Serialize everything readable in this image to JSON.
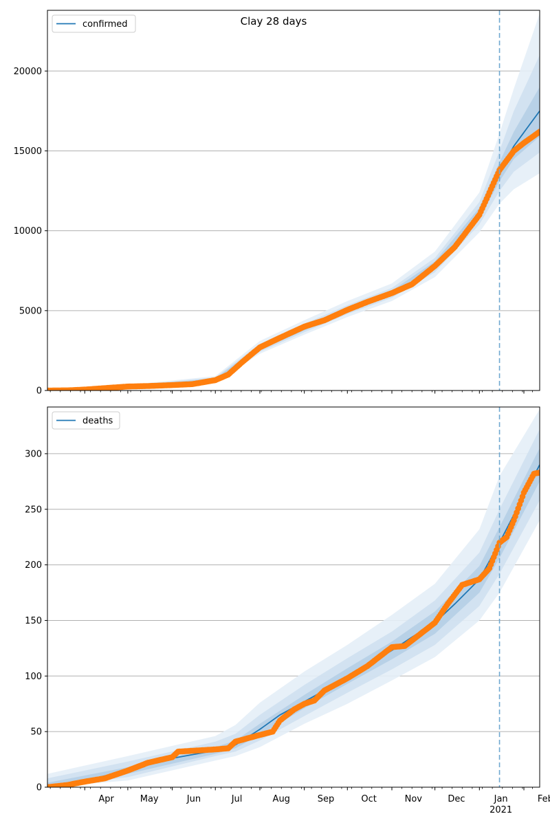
{
  "figure": {
    "title": "Clay 28 days"
  },
  "chart_data": [
    {
      "type": "line",
      "name": "confirmed-panel",
      "title": "Clay 28 days",
      "legend": {
        "label": "confirmed",
        "placement": "top-left"
      },
      "x_axis": {
        "type": "date",
        "range": [
          "2020-03-06",
          "2021-02-12"
        ],
        "month_labels": [],
        "year_label": ""
      },
      "y_axis": {
        "range": [
          0,
          23800
        ],
        "ticks": [
          0,
          5000,
          10000,
          15000,
          20000
        ],
        "grid": true
      },
      "forecast_start": "2021-01-15",
      "fit_series": {
        "name": "confirmed",
        "color": "#1f77b4",
        "points": [
          [
            "2020-03-06",
            0
          ],
          [
            "2020-04-01",
            60
          ],
          [
            "2020-05-01",
            250
          ],
          [
            "2020-06-01",
            350
          ],
          [
            "2020-06-15",
            420
          ],
          [
            "2020-07-01",
            700
          ],
          [
            "2020-07-10",
            1050
          ],
          [
            "2020-07-20",
            1700
          ],
          [
            "2020-08-01",
            2650
          ],
          [
            "2020-08-15",
            3250
          ],
          [
            "2020-09-01",
            3900
          ],
          [
            "2020-09-15",
            4400
          ],
          [
            "2020-10-01",
            5050
          ],
          [
            "2020-10-15",
            5500
          ],
          [
            "2020-11-01",
            6100
          ],
          [
            "2020-11-15",
            6650
          ],
          [
            "2020-12-01",
            7850
          ],
          [
            "2020-12-15",
            9100
          ],
          [
            "2021-01-01",
            11100
          ],
          [
            "2021-01-15",
            13700
          ],
          [
            "2021-01-25",
            15300
          ],
          [
            "2021-02-12",
            17500
          ]
        ]
      },
      "uncertainty_bands": [
        {
          "level": "outer",
          "points": [
            [
              "2020-03-06",
              0,
              0
            ],
            [
              "2020-05-01",
              150,
              350
            ],
            [
              "2020-07-01",
              550,
              900
            ],
            [
              "2020-08-01",
              2300,
              3100
            ],
            [
              "2020-09-01",
              3500,
              4400
            ],
            [
              "2020-10-01",
              4600,
              5600
            ],
            [
              "2020-11-01",
              5600,
              6700
            ],
            [
              "2020-12-01",
              7100,
              8700
            ],
            [
              "2021-01-01",
              9900,
              12400
            ],
            [
              "2021-01-15",
              11700,
              16100
            ],
            [
              "2021-01-25",
              12600,
              18900
            ],
            [
              "2021-02-12",
              13600,
              23600
            ]
          ]
        },
        {
          "level": "middle",
          "points": [
            [
              "2020-03-06",
              0,
              0
            ],
            [
              "2020-05-01",
              190,
              310
            ],
            [
              "2020-07-01",
              600,
              820
            ],
            [
              "2020-08-01",
              2420,
              2920
            ],
            [
              "2020-09-01",
              3650,
              4180
            ],
            [
              "2020-10-01",
              4780,
              5340
            ],
            [
              "2020-11-01",
              5800,
              6420
            ],
            [
              "2020-12-01",
              7400,
              8300
            ],
            [
              "2021-01-01",
              10400,
              11800
            ],
            [
              "2021-01-15",
              12500,
              15000
            ],
            [
              "2021-01-25",
              13700,
              17500
            ],
            [
              "2021-02-12",
              14900,
              21000
            ]
          ]
        },
        {
          "level": "inner",
          "points": [
            [
              "2020-03-06",
              0,
              0
            ],
            [
              "2020-05-01",
              220,
              280
            ],
            [
              "2020-07-01",
              650,
              760
            ],
            [
              "2020-08-01",
              2520,
              2780
            ],
            [
              "2020-09-01",
              3760,
              4040
            ],
            [
              "2020-10-01",
              4900,
              5200
            ],
            [
              "2020-11-01",
              5950,
              6250
            ],
            [
              "2020-12-01",
              7620,
              8080
            ],
            [
              "2021-01-01",
              10750,
              11450
            ],
            [
              "2021-01-15",
              13100,
              14300
            ],
            [
              "2021-01-25",
              14500,
              16200
            ],
            [
              "2021-02-12",
              15900,
              19000
            ]
          ]
        }
      ],
      "observed_series": {
        "name": "observed",
        "color": "#ff7f0e",
        "points": [
          [
            "2020-03-06",
            0
          ],
          [
            "2020-03-20",
            10
          ],
          [
            "2020-04-01",
            60
          ],
          [
            "2020-04-15",
            150
          ],
          [
            "2020-05-01",
            250
          ],
          [
            "2020-05-15",
            280
          ],
          [
            "2020-06-01",
            340
          ],
          [
            "2020-06-15",
            400
          ],
          [
            "2020-07-01",
            650
          ],
          [
            "2020-07-10",
            1000
          ],
          [
            "2020-07-20",
            1800
          ],
          [
            "2020-08-01",
            2700
          ],
          [
            "2020-08-15",
            3300
          ],
          [
            "2020-09-01",
            4000
          ],
          [
            "2020-09-15",
            4400
          ],
          [
            "2020-10-01",
            5050
          ],
          [
            "2020-10-15",
            5550
          ],
          [
            "2020-11-01",
            6100
          ],
          [
            "2020-11-15",
            6650
          ],
          [
            "2020-12-01",
            7800
          ],
          [
            "2020-12-15",
            9000
          ],
          [
            "2021-01-01",
            11000
          ],
          [
            "2021-01-10",
            12800
          ],
          [
            "2021-01-15",
            13800
          ],
          [
            "2021-01-20",
            14400
          ],
          [
            "2021-01-25",
            15000
          ],
          [
            "2021-02-01",
            15500
          ],
          [
            "2021-02-12",
            16200
          ]
        ]
      }
    },
    {
      "type": "line",
      "name": "deaths-panel",
      "title": "",
      "legend": {
        "label": "deaths",
        "placement": "top-left"
      },
      "x_axis": {
        "type": "date",
        "range": [
          "2020-03-06",
          "2021-02-12"
        ],
        "month_labels": [
          {
            "date": "2020-04-01",
            "label": "Apr"
          },
          {
            "date": "2020-05-01",
            "label": "May"
          },
          {
            "date": "2020-06-01",
            "label": "Jun"
          },
          {
            "date": "2020-07-01",
            "label": "Jul"
          },
          {
            "date": "2020-08-01",
            "label": "Aug"
          },
          {
            "date": "2020-09-01",
            "label": "Sep"
          },
          {
            "date": "2020-10-01",
            "label": "Oct"
          },
          {
            "date": "2020-11-01",
            "label": "Nov"
          },
          {
            "date": "2020-12-01",
            "label": "Dec"
          },
          {
            "date": "2021-01-01",
            "label": "Jan"
          },
          {
            "date": "2021-02-01",
            "label": "Feb"
          }
        ],
        "year_label": "2021"
      },
      "y_axis": {
        "range": [
          0,
          342
        ],
        "ticks": [
          0,
          50,
          100,
          150,
          200,
          250,
          300
        ],
        "grid": true
      },
      "forecast_start": "2021-01-15",
      "fit_series": {
        "name": "deaths",
        "color": "#1f77b4",
        "points": [
          [
            "2020-03-06",
            0
          ],
          [
            "2020-04-01",
            6
          ],
          [
            "2020-05-01",
            15
          ],
          [
            "2020-06-01",
            26
          ],
          [
            "2020-07-01",
            33
          ],
          [
            "2020-07-15",
            38
          ],
          [
            "2020-08-01",
            52
          ],
          [
            "2020-08-15",
            65
          ],
          [
            "2020-09-01",
            77
          ],
          [
            "2020-09-15",
            87
          ],
          [
            "2020-10-01",
            100
          ],
          [
            "2020-10-15",
            110
          ],
          [
            "2020-11-01",
            123
          ],
          [
            "2020-11-15",
            135
          ],
          [
            "2020-12-01",
            148
          ],
          [
            "2020-12-15",
            165
          ],
          [
            "2021-01-01",
            187
          ],
          [
            "2021-01-15",
            220
          ],
          [
            "2021-01-25",
            245
          ],
          [
            "2021-02-12",
            290
          ]
        ]
      },
      "uncertainty_bands": [
        {
          "level": "outer",
          "points": [
            [
              "2020-03-06",
              0,
              12
            ],
            [
              "2020-05-01",
              6,
              28
            ],
            [
              "2020-07-01",
              24,
              46
            ],
            [
              "2020-07-15",
              28,
              56
            ],
            [
              "2020-08-01",
              36,
              76
            ],
            [
              "2020-09-01",
              57,
              104
            ],
            [
              "2020-10-01",
              75,
              128
            ],
            [
              "2020-11-01",
              96,
              155
            ],
            [
              "2020-12-01",
              117,
              183
            ],
            [
              "2021-01-01",
              150,
              232
            ],
            [
              "2021-01-15",
              175,
              280
            ],
            [
              "2021-02-12",
              240,
              340
            ]
          ]
        },
        {
          "level": "middle",
          "points": [
            [
              "2020-03-06",
              0,
              8
            ],
            [
              "2020-05-01",
              9,
              23
            ],
            [
              "2020-07-01",
              28,
              41
            ],
            [
              "2020-07-15",
              32,
              48
            ],
            [
              "2020-08-01",
              42,
              65
            ],
            [
              "2020-09-01",
              64,
              92
            ],
            [
              "2020-10-01",
              85,
              116
            ],
            [
              "2020-11-01",
              106,
              140
            ],
            [
              "2020-12-01",
              128,
              168
            ],
            [
              "2021-01-01",
              163,
              211
            ],
            [
              "2021-01-15",
              192,
              250
            ],
            [
              "2021-02-12",
              258,
              322
            ]
          ]
        },
        {
          "level": "inner",
          "points": [
            [
              "2020-03-06",
              0,
              4
            ],
            [
              "2020-05-01",
              12,
              18
            ],
            [
              "2020-07-01",
              30,
              36
            ],
            [
              "2020-07-15",
              35,
              42
            ],
            [
              "2020-08-01",
              47,
              57
            ],
            [
              "2020-09-01",
              71,
              83
            ],
            [
              "2020-10-01",
              93,
              107
            ],
            [
              "2020-11-01",
              115,
              131
            ],
            [
              "2020-12-01",
              138,
              158
            ],
            [
              "2021-01-01",
              175,
              199
            ],
            [
              "2021-01-15",
              206,
              234
            ],
            [
              "2021-02-12",
              275,
              305
            ]
          ]
        }
      ],
      "observed_series": {
        "name": "observed",
        "color": "#ff7f0e",
        "points": [
          [
            "2020-03-06",
            0
          ],
          [
            "2020-03-20",
            2
          ],
          [
            "2020-04-01",
            5
          ],
          [
            "2020-04-15",
            8
          ],
          [
            "2020-05-01",
            15
          ],
          [
            "2020-05-15",
            22
          ],
          [
            "2020-06-01",
            27
          ],
          [
            "2020-06-05",
            32
          ],
          [
            "2020-07-01",
            34
          ],
          [
            "2020-07-10",
            35
          ],
          [
            "2020-07-15",
            41
          ],
          [
            "2020-08-01",
            47
          ],
          [
            "2020-08-10",
            50
          ],
          [
            "2020-08-15",
            60
          ],
          [
            "2020-08-25",
            70
          ],
          [
            "2020-09-01",
            75
          ],
          [
            "2020-09-08",
            78
          ],
          [
            "2020-09-15",
            87
          ],
          [
            "2020-10-01",
            98
          ],
          [
            "2020-10-15",
            109
          ],
          [
            "2020-11-01",
            126
          ],
          [
            "2020-11-10",
            127
          ],
          [
            "2020-11-20",
            137
          ],
          [
            "2020-12-01",
            148
          ],
          [
            "2020-12-10",
            165
          ],
          [
            "2020-12-20",
            182
          ],
          [
            "2021-01-01",
            187
          ],
          [
            "2021-01-08",
            197
          ],
          [
            "2021-01-15",
            220
          ],
          [
            "2021-01-20",
            225
          ],
          [
            "2021-01-25",
            240
          ],
          [
            "2021-02-01",
            265
          ],
          [
            "2021-02-08",
            282
          ],
          [
            "2021-02-12",
            283
          ]
        ]
      }
    }
  ]
}
